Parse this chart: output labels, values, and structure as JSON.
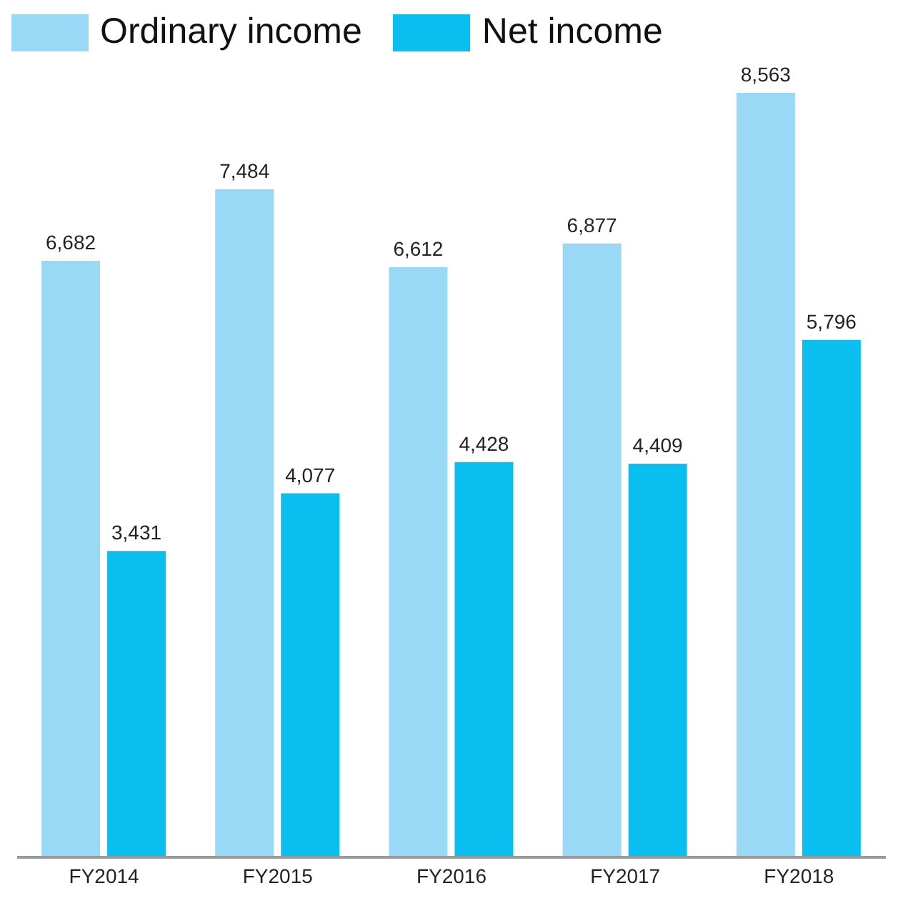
{
  "chart_data": {
    "type": "bar",
    "categories": [
      "FY2014",
      "FY2015",
      "FY2016",
      "FY2017",
      "FY2018"
    ],
    "series": [
      {
        "name": "Ordinary income",
        "color": "#99d9f5",
        "values": [
          6682,
          7484,
          6612,
          6877,
          8563
        ],
        "value_labels": [
          "6,682",
          "7,484",
          "6,612",
          "6,877",
          "8,563"
        ]
      },
      {
        "name": "Net income",
        "color": "#0abff0",
        "values": [
          3431,
          4077,
          4428,
          4409,
          5796
        ],
        "value_labels": [
          "3,431",
          "4,077",
          "4,428",
          "4,409",
          "5,796"
        ]
      }
    ],
    "legend": "top left",
    "grid": false
  }
}
